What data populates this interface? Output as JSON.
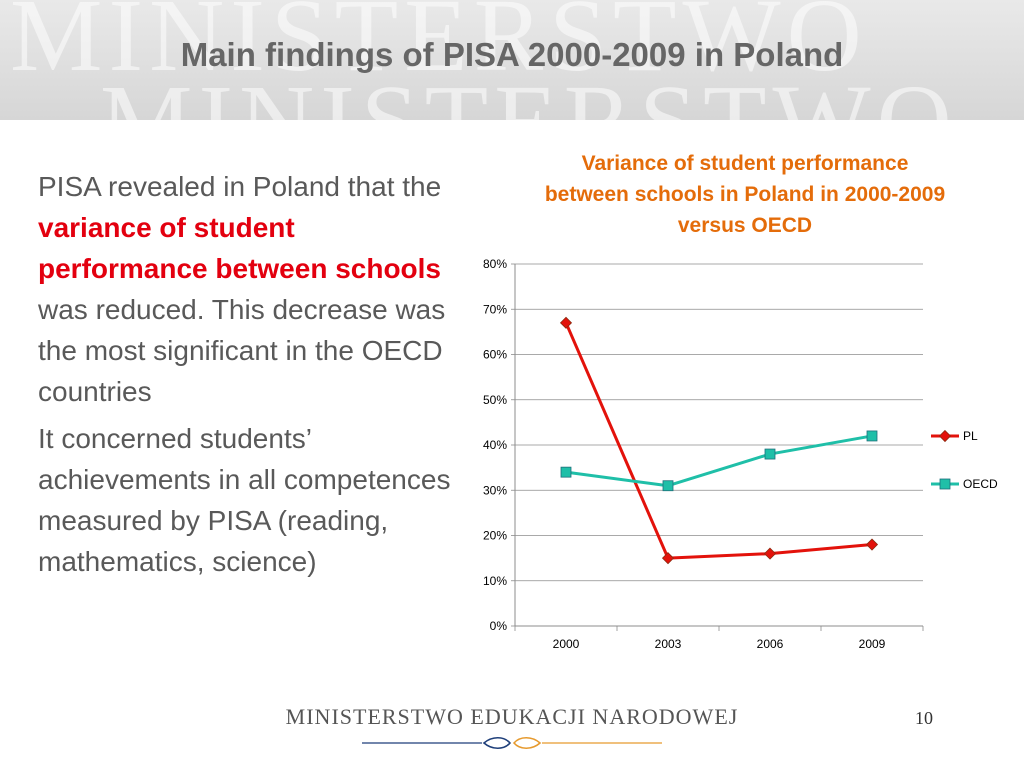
{
  "watermark": "MINISTERSTWO",
  "title": "Main findings of PISA 2000-2009 in Poland",
  "body": {
    "p1_pre": "PISA revealed in Poland that the ",
    "p1_highlight": "variance of student performance between schools",
    "p1_post": " was reduced. This decrease was the most significant in the OECD countries",
    "p2": "It concerned students’ achievements in all competences measured by PISA (reading, mathematics, science)"
  },
  "chart_data": {
    "type": "line",
    "title": "Variance of student performance\nbetween schools in Poland in 2000-2009\nversus OECD",
    "categories": [
      "2000",
      "2003",
      "2006",
      "2009"
    ],
    "series": [
      {
        "name": "PL",
        "values": [
          67,
          15,
          16,
          18
        ],
        "color": "#e3120b",
        "marker": "diamond"
      },
      {
        "name": "OECD",
        "values": [
          34,
          31,
          38,
          42
        ],
        "color": "#1fbfa8",
        "marker": "square"
      }
    ],
    "ylim": [
      0,
      80
    ],
    "yticks": [
      "0%",
      "10%",
      "20%",
      "30%",
      "40%",
      "50%",
      "60%",
      "70%",
      "80%"
    ],
    "ytick_step": 10,
    "grid": true,
    "legend": "right"
  },
  "footer": {
    "brand": "MINISTERSTWO EDUKACJI NARODOWEJ",
    "page": "10"
  },
  "colors": {
    "title": "#666666",
    "highlight": "#e3000f",
    "chart_title": "#e46c0a",
    "ornament_blue": "#1f3f7a",
    "ornament_orange": "#e69a2e"
  }
}
